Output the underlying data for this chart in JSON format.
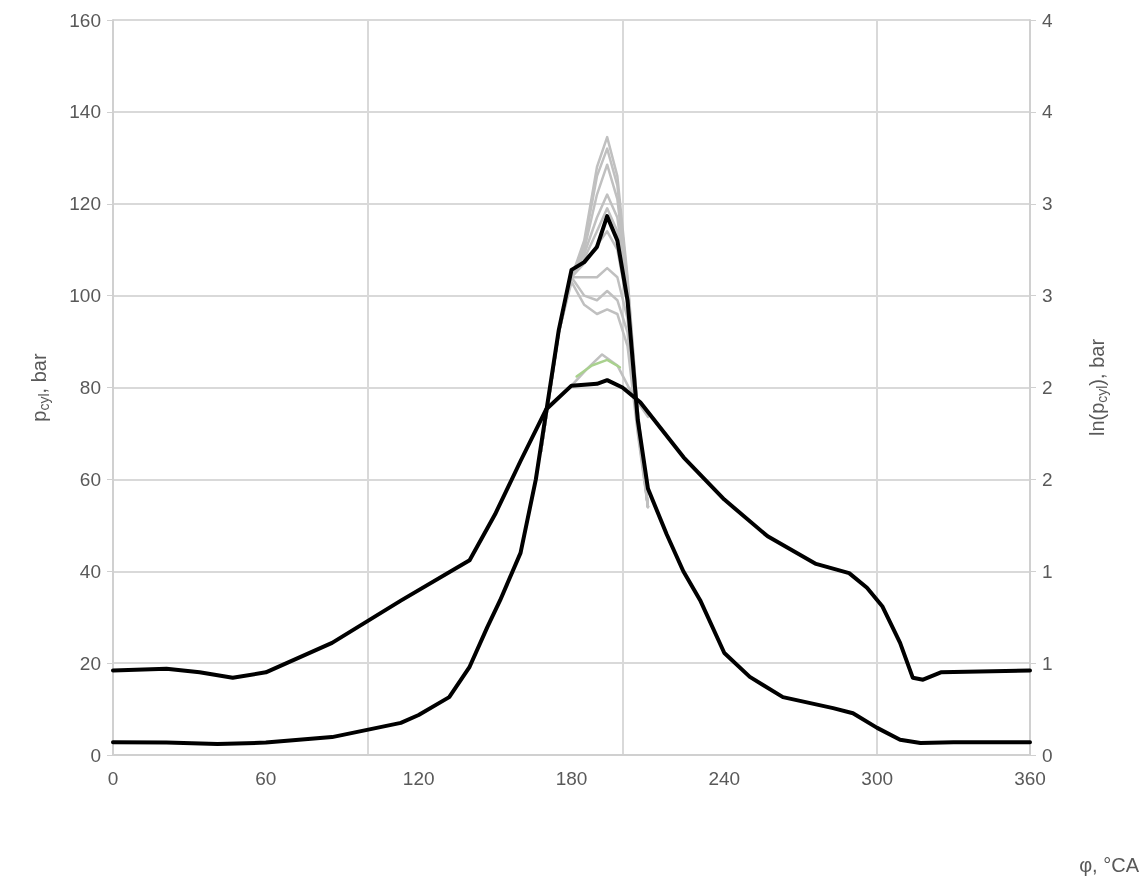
{
  "chart_data": {
    "type": "line",
    "xlabel": "φ, °CA",
    "ylabel": "p$_{cyl}$, bar",
    "y2label": "ln(p$_{cyl}$), bar",
    "xlim": [
      0,
      360
    ],
    "xticks": [
      0,
      60,
      120,
      180,
      240,
      300,
      360
    ],
    "ylim": [
      0,
      160
    ],
    "yticks": [
      0,
      20,
      40,
      60,
      80,
      100,
      120,
      140,
      160
    ],
    "y2lim": [
      0,
      4
    ],
    "y2ticks": [
      0,
      {
        "value": 0.5,
        "label": "1"
      },
      1,
      {
        "value": 1.5,
        "label": "2"
      },
      2,
      {
        "value": 2.5,
        "label": "3"
      },
      3,
      {
        "value": 3.5,
        "label": "4"
      },
      4
    ],
    "grid": true,
    "marker": "none",
    "line_style": "solid",
    "series": [
      {
        "color": "#c0c0c0",
        "x": [
          168,
          175,
          180,
          185,
          190,
          194,
          198,
          202,
          206,
          210
        ],
        "values": [
          66,
          92,
          104,
          112,
          128,
          134.5,
          126,
          104,
          75,
          54
        ]
      },
      {
        "color": "#c0c0c0",
        "x": [
          168,
          175,
          180,
          185,
          190,
          194,
          198,
          202,
          206,
          210
        ],
        "values": [
          66,
          92,
          104,
          111,
          126,
          132,
          124,
          103,
          75,
          54
        ]
      },
      {
        "color": "#c0c0c0",
        "x": [
          168,
          175,
          180,
          185,
          190,
          194,
          198,
          202,
          206,
          210
        ],
        "values": [
          66,
          92,
          104,
          110,
          122,
          128.5,
          121,
          102,
          74,
          54
        ]
      },
      {
        "color": "#c0c0c0",
        "x": [
          168,
          175,
          180,
          185,
          190,
          194,
          198,
          202,
          206,
          210
        ],
        "values": [
          66,
          92,
          104,
          109,
          117,
          122,
          117,
          101,
          74,
          54
        ]
      },
      {
        "color": "#c0c0c0",
        "x": [
          168,
          175,
          180,
          185,
          190,
          194,
          198,
          202,
          206,
          210
        ],
        "values": [
          66,
          92,
          104,
          108,
          114,
          119,
          114,
          100,
          74,
          54
        ]
      },
      {
        "color": "#c0c0c0",
        "x": [
          168,
          175,
          180,
          185,
          190,
          194,
          198,
          202,
          206,
          210
        ],
        "values": [
          66,
          92,
          104,
          107,
          111,
          114,
          110,
          98,
          73,
          54
        ]
      },
      {
        "color": "#c0c0c0",
        "x": [
          168,
          175,
          180,
          185,
          190,
          194,
          198,
          202,
          206,
          210
        ],
        "values": [
          66,
          92,
          104,
          104,
          104,
          106,
          104,
          95,
          72,
          54
        ]
      },
      {
        "color": "#c0c0c0",
        "x": [
          168,
          175,
          180,
          185,
          190,
          194,
          198,
          202,
          206,
          210
        ],
        "values": [
          66,
          92,
          104,
          100,
          99,
          101,
          99,
          92,
          71,
          54
        ]
      },
      {
        "color": "#c0c0c0",
        "x": [
          168,
          175,
          180,
          185,
          190,
          194,
          198,
          202,
          206,
          210
        ],
        "values": [
          66,
          92,
          103,
          98,
          96,
          97,
          96,
          89,
          70,
          54
        ]
      },
      {
        "color": "#c0c0c0",
        "axis": "y2",
        "x": [
          170,
          180,
          186,
          192,
          198,
          204,
          210
        ],
        "values": [
          1.88,
          2.01,
          2.1,
          2.18,
          2.12,
          1.96,
          1.84
        ]
      },
      {
        "color": "#a9d18e",
        "axis": "y2",
        "x": [
          182,
          188,
          194,
          199
        ],
        "values": [
          2.06,
          2.12,
          2.15,
          2.11
        ]
      },
      {
        "color": "#000000",
        "x": [
          0,
          21,
          41,
          60,
          86,
          113,
          120,
          132,
          140,
          147,
          152,
          160,
          166,
          175,
          180,
          185,
          190,
          194,
          198,
          202,
          206,
          210,
          217.4,
          223.9,
          230.5,
          240,
          250,
          263,
          282.7,
          290.5,
          300,
          309,
          317,
          330,
          360
        ],
        "values": [
          2.8,
          2.7,
          2.4,
          2.7,
          3.9,
          7,
          8.7,
          12.6,
          19.2,
          27.9,
          33.7,
          44,
          60,
          92.5,
          105.6,
          107.3,
          110.6,
          117.3,
          112,
          99,
          73,
          58,
          48,
          40,
          33.7,
          22.2,
          17,
          12.6,
          10.2,
          9.1,
          5.9,
          3.3,
          2.6,
          2.8,
          2.8
        ]
      },
      {
        "color": "#000000",
        "axis": "y2",
        "x": [
          0,
          21,
          34,
          47,
          60,
          86,
          113,
          140,
          150,
          160,
          170,
          180,
          190,
          194,
          200,
          207,
          224,
          240,
          257,
          276,
          289,
          296,
          302,
          309,
          314,
          318,
          325,
          360
        ],
        "values": [
          0.46,
          0.47,
          0.45,
          0.42,
          0.45,
          0.61,
          0.84,
          1.06,
          1.31,
          1.6,
          1.88,
          2.01,
          2.02,
          2.04,
          2.0,
          1.92,
          1.62,
          1.39,
          1.19,
          1.04,
          0.99,
          0.91,
          0.81,
          0.61,
          0.42,
          0.41,
          0.45,
          0.46
        ]
      }
    ]
  }
}
